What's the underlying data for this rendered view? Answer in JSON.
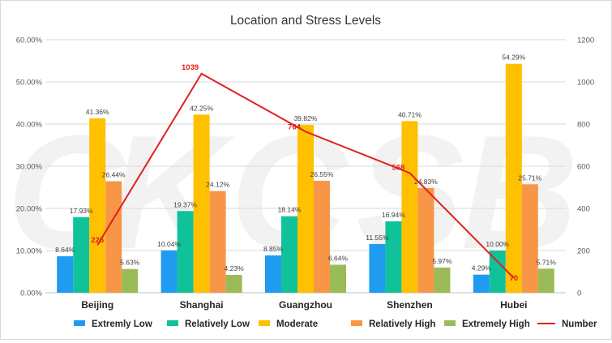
{
  "chart_data": {
    "type": "bar",
    "title": "Location and Stress Levels",
    "categories": [
      "Beijing",
      "Shanghai",
      "Guangzhou",
      "Shenzhen",
      "Hubei"
    ],
    "y_left": {
      "min": 0,
      "max": 60,
      "step": 10,
      "tick_labels": [
        "0.00%",
        "10.00%",
        "20.00%",
        "30.00%",
        "40.00%",
        "50.00%",
        "60.00%"
      ]
    },
    "y_right": {
      "min": 0,
      "max": 1200,
      "step": 200,
      "tick_labels": [
        "0",
        "200",
        "400",
        "600",
        "800",
        "1000",
        "1200"
      ]
    },
    "grid": true,
    "legend_position": "bottom",
    "series": [
      {
        "name": "Extremly Low",
        "color": "#1f9bf0",
        "values": [
          8.64,
          10.04,
          8.85,
          11.55,
          4.29
        ],
        "labels": [
          "8.64%",
          "10.04%",
          "8.85%",
          "11.55%",
          "4.29%"
        ]
      },
      {
        "name": "Relatively Low",
        "color": "#10c29a",
        "values": [
          17.93,
          19.37,
          18.14,
          16.94,
          10.0
        ],
        "labels": [
          "17.93%",
          "19.37%",
          "18.14%",
          "16.94%",
          "10.00%"
        ]
      },
      {
        "name": "Moderate",
        "color": "#ffc000",
        "values": [
          41.36,
          42.25,
          39.82,
          40.71,
          54.29
        ],
        "labels": [
          "41.36%",
          "42.25%",
          "39.82%",
          "40.71%",
          "54.29%"
        ]
      },
      {
        "name": "Relatively High",
        "color": "#f79646",
        "values": [
          26.44,
          24.12,
          26.55,
          24.83,
          25.71
        ],
        "labels": [
          "26.44%",
          "24.12%",
          "26.55%",
          "24.83%",
          "25.71%"
        ]
      },
      {
        "name": "Extremely High",
        "color": "#9bbb59",
        "values": [
          5.63,
          4.23,
          6.64,
          5.97,
          5.71
        ],
        "labels": [
          "5.63%",
          "4.23%",
          "6.64%",
          "5.97%",
          "5.71%"
        ]
      }
    ],
    "line_series": {
      "name": "Number",
      "color": "#e02020",
      "axis": "right",
      "values": [
        226,
        1039,
        764,
        568,
        70
      ],
      "labels": [
        "226",
        "1039",
        "764",
        "568",
        "70"
      ]
    },
    "watermark": "CKCSB"
  }
}
